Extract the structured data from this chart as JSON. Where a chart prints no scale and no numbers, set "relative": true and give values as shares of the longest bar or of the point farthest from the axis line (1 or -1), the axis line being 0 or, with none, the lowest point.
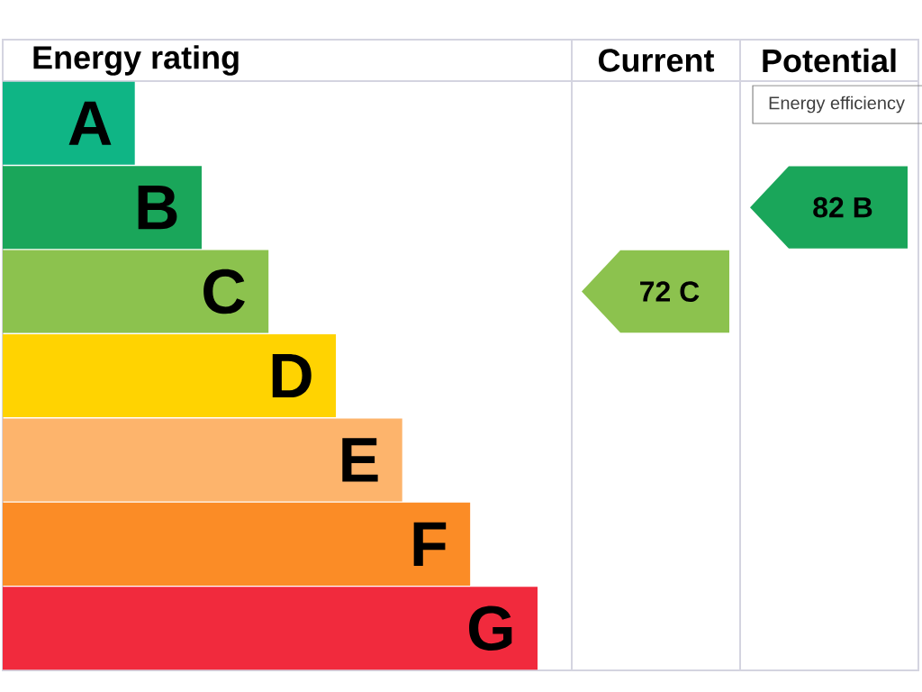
{
  "chart_data": {
    "type": "bar",
    "orientation": "horizontal",
    "relative": true,
    "title": "Energy rating",
    "categories": [
      "A",
      "B",
      "C",
      "D",
      "E",
      "F",
      "G"
    ],
    "values": [
      0.247,
      0.372,
      0.497,
      0.623,
      0.747,
      0.874,
      1
    ],
    "colors": [
      "#0fb585",
      "#1aa65a",
      "#8cc24e",
      "#ffd301",
      "#fdb46c",
      "#fb8c26",
      "#f12a3d"
    ],
    "annotations": [
      "Current",
      "72 C",
      "Potential",
      "82 B",
      "Energy efficiency"
    ]
  }
}
